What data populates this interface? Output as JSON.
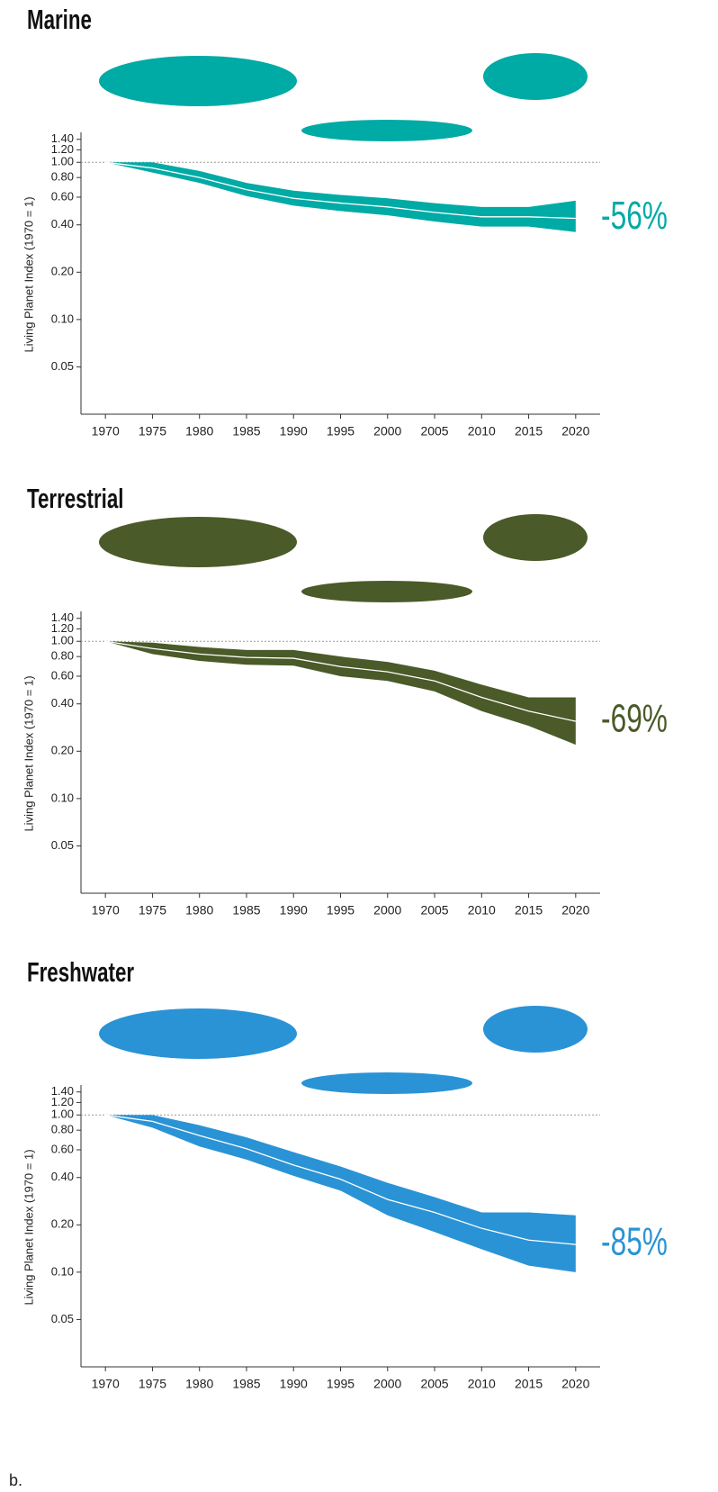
{
  "chart_data": [
    {
      "type": "band-line",
      "title": "Marine",
      "change_label": "-56%",
      "ylabel": "Living Planet Index (1970 = 1)",
      "color": "#00aaa5",
      "yscale": "log",
      "x": [
        1970,
        1975,
        1980,
        1985,
        1990,
        1995,
        2000,
        2005,
        2010,
        2015,
        2020
      ],
      "values": [
        1.0,
        0.92,
        0.8,
        0.67,
        0.59,
        0.55,
        0.52,
        0.48,
        0.45,
        0.45,
        0.44
      ],
      "upper": [
        1.0,
        1.0,
        0.88,
        0.74,
        0.66,
        0.62,
        0.59,
        0.55,
        0.52,
        0.52,
        0.57
      ],
      "lower": [
        1.0,
        0.86,
        0.74,
        0.61,
        0.53,
        0.49,
        0.46,
        0.42,
        0.39,
        0.39,
        0.36
      ],
      "xlim": [
        1967.4,
        2022.6
      ],
      "ylim": [
        0.025,
        1.55
      ],
      "reference_line": 1,
      "xticks": [
        1970,
        1975,
        1980,
        1985,
        1990,
        1995,
        2000,
        2005,
        2010,
        2015,
        2020
      ],
      "yticks": [
        {
          "value": 1.4,
          "label": "1.40"
        },
        {
          "value": 1.2,
          "label": "1.20"
        },
        {
          "value": 1,
          "label": "1.00"
        },
        {
          "value": 0.8,
          "label": "0.80"
        },
        {
          "value": 0.6,
          "label": "0.60"
        },
        {
          "value": 0.4,
          "label": "0.40"
        },
        {
          "value": 0.2,
          "label": "0.20"
        },
        {
          "value": 0.1,
          "label": "0.10"
        },
        0.05
      ]
    },
    {
      "type": "band-line",
      "title": "Terrestrial",
      "change_label": "-69%",
      "ylabel": "Living Planet Index (1970 = 1)",
      "color": "#4a5a28",
      "yscale": "log",
      "x": [
        1970,
        1975,
        1980,
        1985,
        1990,
        1995,
        2000,
        2005,
        2010,
        2015,
        2020
      ],
      "values": [
        1.0,
        0.9,
        0.83,
        0.79,
        0.78,
        0.69,
        0.64,
        0.56,
        0.44,
        0.36,
        0.31
      ],
      "upper": [
        1.0,
        0.98,
        0.92,
        0.88,
        0.88,
        0.8,
        0.74,
        0.65,
        0.53,
        0.44,
        0.44
      ],
      "lower": [
        1.0,
        0.83,
        0.75,
        0.71,
        0.7,
        0.6,
        0.56,
        0.48,
        0.36,
        0.29,
        0.22
      ],
      "xlim": [
        1967.4,
        2022.6
      ],
      "ylim": [
        0.025,
        1.55
      ],
      "reference_line": 1,
      "xticks": [
        1970,
        1975,
        1980,
        1985,
        1990,
        1995,
        2000,
        2005,
        2010,
        2015,
        2020
      ],
      "yticks": [
        {
          "value": 1.4,
          "label": "1.40"
        },
        {
          "value": 1.2,
          "label": "1.20"
        },
        {
          "value": 1,
          "label": "1.00"
        },
        {
          "value": 0.8,
          "label": "0.80"
        },
        {
          "value": 0.6,
          "label": "0.60"
        },
        {
          "value": 0.4,
          "label": "0.40"
        },
        {
          "value": 0.2,
          "label": "0.20"
        },
        {
          "value": 0.1,
          "label": "0.10"
        },
        0.05
      ]
    },
    {
      "type": "band-line",
      "title": "Freshwater",
      "change_label": "-85%",
      "ylabel": "Living Planet Index (1970 = 1)",
      "color": "#2a93d5",
      "yscale": "log",
      "x": [
        1970,
        1975,
        1980,
        1985,
        1990,
        1995,
        2000,
        2005,
        2010,
        2015,
        2020
      ],
      "values": [
        1.0,
        0.91,
        0.74,
        0.61,
        0.48,
        0.39,
        0.29,
        0.24,
        0.19,
        0.16,
        0.15
      ],
      "upper": [
        1.0,
        1.0,
        0.86,
        0.72,
        0.58,
        0.47,
        0.37,
        0.3,
        0.24,
        0.24,
        0.23
      ],
      "lower": [
        1.0,
        0.83,
        0.63,
        0.52,
        0.41,
        0.33,
        0.23,
        0.18,
        0.14,
        0.11,
        0.1
      ],
      "xlim": [
        1967.4,
        2022.6
      ],
      "ylim": [
        0.025,
        1.55
      ],
      "reference_line": 1,
      "xticks": [
        1970,
        1975,
        1980,
        1985,
        1990,
        1995,
        2000,
        2005,
        2010,
        2015,
        2020
      ],
      "yticks": [
        {
          "value": 1.4,
          "label": "1.40"
        },
        {
          "value": 1.2,
          "label": "1.20"
        },
        {
          "value": 1,
          "label": "1.00"
        },
        {
          "value": 0.8,
          "label": "0.80"
        },
        {
          "value": 0.6,
          "label": "0.60"
        },
        {
          "value": 0.4,
          "label": "0.40"
        },
        {
          "value": 0.2,
          "label": "0.20"
        },
        {
          "value": 0.1,
          "label": "0.10"
        },
        0.05
      ]
    }
  ],
  "footnote": "b."
}
